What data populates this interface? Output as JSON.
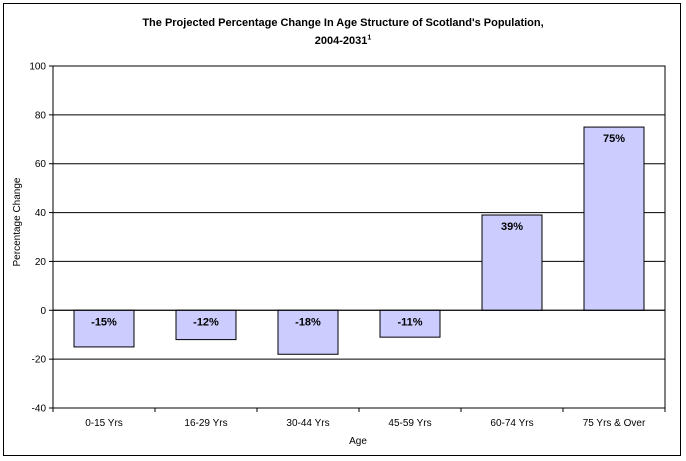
{
  "chart_data": {
    "type": "bar",
    "title_line1": "The Projected Percentage Change In Age Structure of Scotland's Population,",
    "title_line2": "2004-2031",
    "title_superscript": "1",
    "xlabel": "Age",
    "ylabel": "Percentage Change",
    "ylim": [
      -40,
      100
    ],
    "yticks": [
      -40,
      -20,
      0,
      20,
      40,
      60,
      80,
      100
    ],
    "grid": true,
    "categories": [
      "0-15 Yrs",
      "16-29 Yrs",
      "30-44 Yrs",
      "45-59 Yrs",
      "60-74 Yrs",
      "75 Yrs & Over"
    ],
    "values": [
      -15,
      -12,
      -18,
      -11,
      39,
      75
    ],
    "data_labels": [
      "-15%",
      "-12%",
      "-18%",
      "-11%",
      "39%",
      "75%"
    ],
    "bar_color": "#ccccff"
  }
}
